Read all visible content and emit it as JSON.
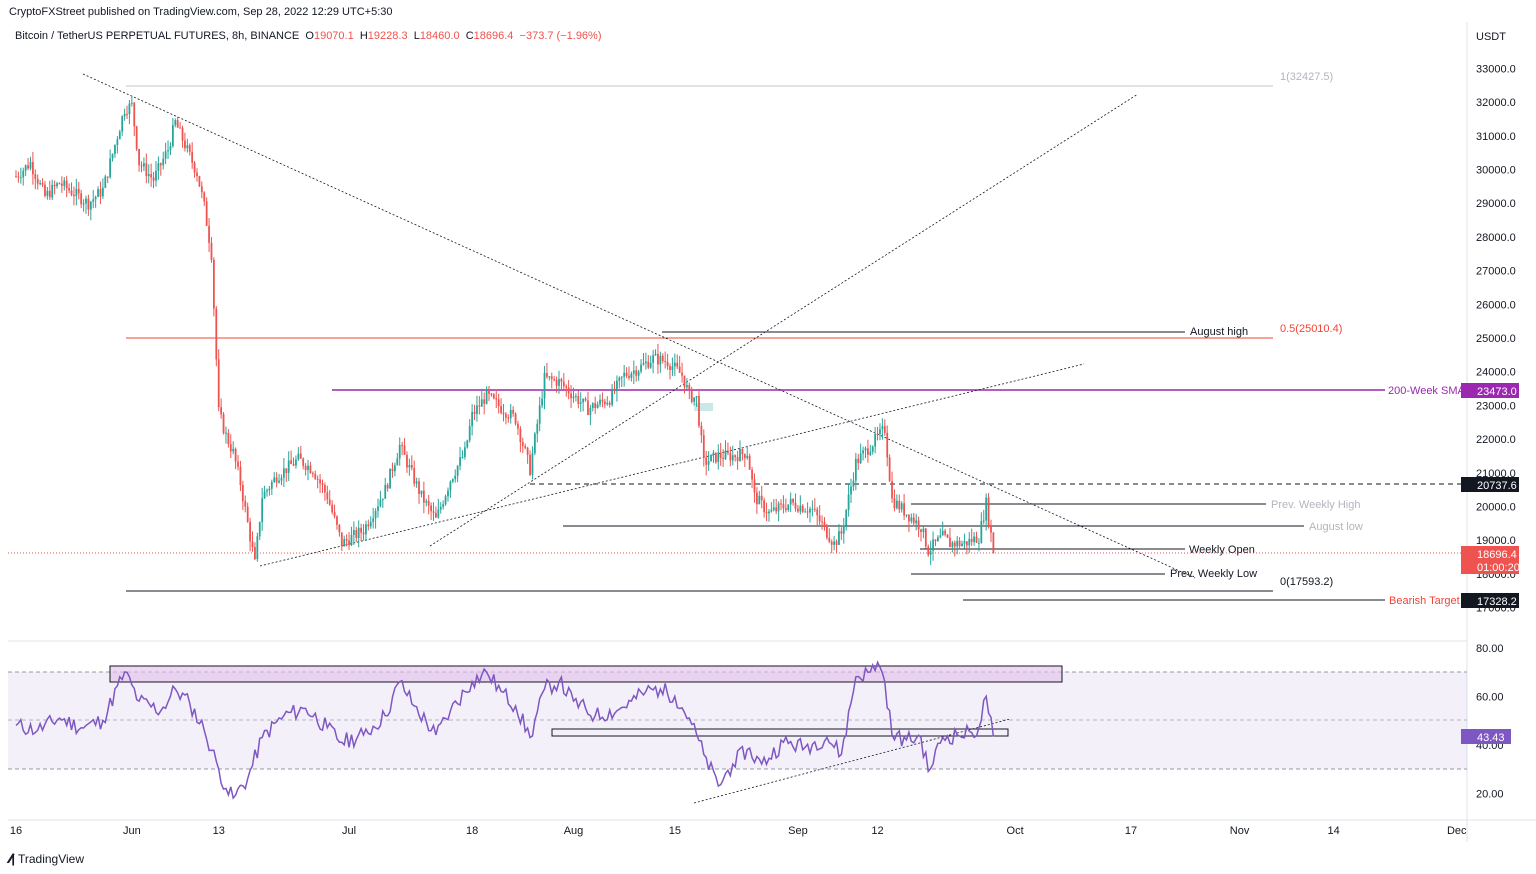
{
  "header": {
    "published": "CryptoFXStreet published on TradingView.com, Sep 28, 2022 12:29 UTC+5:30",
    "symbol": "Bitcoin / TetherUS PERPETUAL FUTURES, 8h, BINANCE",
    "open_label": "O",
    "open": "19070.1",
    "high_label": "H",
    "high": "19228.3",
    "low_label": "L",
    "low": "18460.0",
    "close_label": "C",
    "close": "18696.4",
    "change": "−373.7 (−1.96%)"
  },
  "footer": {
    "brand": "TradingView"
  },
  "colors": {
    "up": "#26a69a",
    "down": "#ef5350",
    "rsi": "#7e57c2",
    "sma": "#9c27b0",
    "fib": "#f44336"
  },
  "chart_data": [
    {
      "type": "candlestick",
      "currency": "USDT",
      "ylim": [
        16500,
        33700
      ],
      "y_ticks": [
        "17000.0",
        "18000.0",
        "19000.0",
        "20000.0",
        "21000.0",
        "22000.0",
        "23000.0",
        "24000.0",
        "25000.0",
        "26000.0",
        "27000.0",
        "28000.0",
        "29000.0",
        "30000.0",
        "31000.0",
        "32000.0",
        "33000.0"
      ],
      "x_ticks": [
        "16",
        "Jun",
        "13",
        "Jul",
        "18",
        "Aug",
        "15",
        "Sep",
        "12",
        "Oct",
        "17",
        "Nov",
        "14",
        "Dec"
      ],
      "price_path": [
        [
          "May 16",
          29800
        ],
        [
          "May 18",
          30200
        ],
        [
          "May 20",
          29200
        ],
        [
          "May 22",
          29600
        ],
        [
          "May 24",
          29300
        ],
        [
          "May 26",
          29000
        ],
        [
          "May 28",
          29400
        ],
        [
          "May 31",
          31800
        ],
        [
          "Jun 1",
          31900
        ],
        [
          "Jun 2",
          30200
        ],
        [
          "Jun 4",
          29700
        ],
        [
          "Jun 6",
          30600
        ],
        [
          "Jun 7",
          31400
        ],
        [
          "Jun 8",
          30900
        ],
        [
          "Jun 10",
          29900
        ],
        [
          "Jun 11",
          28900
        ],
        [
          "Jun 12",
          27500
        ],
        [
          "Jun 13",
          22800
        ],
        [
          "Jun 14",
          22100
        ],
        [
          "Jun 15",
          21600
        ],
        [
          "Jun 16",
          20700
        ],
        [
          "Jun 18",
          18300
        ],
        [
          "Jun 19",
          20300
        ],
        [
          "Jun 21",
          20900
        ],
        [
          "Jun 24",
          21400
        ],
        [
          "Jun 26",
          21100
        ],
        [
          "Jun 28",
          20300
        ],
        [
          "Jun 30",
          18900
        ],
        [
          "Jul 3",
          19300
        ],
        [
          "Jul 6",
          20500
        ],
        [
          "Jul 8",
          21800
        ],
        [
          "Jul 11",
          20300
        ],
        [
          "Jul 13",
          19600
        ],
        [
          "Jul 15",
          20800
        ],
        [
          "Jul 17",
          21600
        ],
        [
          "Jul 18",
          22700
        ],
        [
          "Jul 20",
          23300
        ],
        [
          "Jul 21",
          23100
        ],
        [
          "Jul 24",
          22600
        ],
        [
          "Jul 26",
          21100
        ],
        [
          "Jul 28",
          23800
        ],
        [
          "Jul 30",
          23700
        ],
        [
          "Aug 1",
          23300
        ],
        [
          "Aug 3",
          22900
        ],
        [
          "Aug 6",
          23200
        ],
        [
          "Aug 8",
          23900
        ],
        [
          "Aug 10",
          24100
        ],
        [
          "Aug 12",
          24400
        ],
        [
          "Aug 14",
          24300
        ],
        [
          "Aug 15",
          24100
        ],
        [
          "Aug 16",
          23900
        ],
        [
          "Aug 17",
          23300
        ],
        [
          "Aug 18",
          23200
        ],
        [
          "Aug 19",
          21300
        ],
        [
          "Aug 21",
          21500
        ],
        [
          "Aug 23",
          21500
        ],
        [
          "Aug 25",
          21600
        ],
        [
          "Aug 26",
          20300
        ],
        [
          "Aug 28",
          19800
        ],
        [
          "Aug 31",
          20100
        ],
        [
          "Sep 3",
          19900
        ],
        [
          "Sep 6",
          18900
        ],
        [
          "Sep 7",
          19200
        ],
        [
          "Sep 9",
          21300
        ],
        [
          "Sep 11",
          21800
        ],
        [
          "Sep 13",
          22300
        ],
        [
          "Sep 14",
          20200
        ],
        [
          "Sep 16",
          19800
        ],
        [
          "Sep 18",
          19400
        ],
        [
          "Sep 19",
          18700
        ],
        [
          "Sep 21",
          19100
        ],
        [
          "Sep 22",
          18900
        ],
        [
          "Sep 24",
          18900
        ],
        [
          "Sep 26",
          19100
        ],
        [
          "Sep 27",
          20100
        ],
        [
          "Sep 28",
          18696
        ]
      ]
    },
    {
      "type": "line",
      "ylim": [
        10,
        87
      ],
      "y_ticks": [
        "20.00",
        "40.00",
        "60.00",
        "80.00"
      ],
      "bands": [
        30,
        50,
        70
      ],
      "current": "43.43",
      "series": [
        {
          "values": [
            [
              "May 16",
              48
            ],
            [
              "May 19",
              46
            ],
            [
              "May 22",
              51
            ],
            [
              "May 25",
              47
            ],
            [
              "May 28",
              50
            ],
            [
              "May 31",
              70
            ],
            [
              "Jun 2",
              58
            ],
            [
              "Jun 5",
              54
            ],
            [
              "Jun 7",
              63
            ],
            [
              "Jun 9",
              57
            ],
            [
              "Jun 11",
              46
            ],
            [
              "Jun 13",
              30
            ],
            [
              "Jun 14",
              22
            ],
            [
              "Jun 15",
              18
            ],
            [
              "Jun 17",
              26
            ],
            [
              "Jun 19",
              43
            ],
            [
              "Jun 22",
              52
            ],
            [
              "Jun 25",
              55
            ],
            [
              "Jun 28",
              47
            ],
            [
              "Jun 30",
              41
            ],
            [
              "Jul 3",
              44
            ],
            [
              "Jul 6",
              52
            ],
            [
              "Jul 8",
              66
            ],
            [
              "Jul 10",
              56
            ],
            [
              "Jul 13",
              44
            ],
            [
              "Jul 15",
              54
            ],
            [
              "Jul 18",
              66
            ],
            [
              "Jul 20",
              70
            ],
            [
              "Jul 22",
              62
            ],
            [
              "Jul 24",
              56
            ],
            [
              "Jul 26",
              43
            ],
            [
              "Jul 28",
              63
            ],
            [
              "Jul 30",
              66
            ],
            [
              "Aug 1",
              58
            ],
            [
              "Aug 4",
              52
            ],
            [
              "Aug 7",
              54
            ],
            [
              "Aug 9",
              58
            ],
            [
              "Aug 11",
              62
            ],
            [
              "Aug 13",
              63
            ],
            [
              "Aug 15",
              60
            ],
            [
              "Aug 17",
              51
            ],
            [
              "Aug 19",
              36
            ],
            [
              "Aug 21",
              23
            ],
            [
              "Aug 23",
              32
            ],
            [
              "Aug 25",
              38
            ],
            [
              "Aug 27",
              32
            ],
            [
              "Aug 30",
              41
            ],
            [
              "Sep 2",
              39
            ],
            [
              "Sep 5",
              43
            ],
            [
              "Sep 7",
              36
            ],
            [
              "Sep 9",
              68
            ],
            [
              "Sep 11",
              70
            ],
            [
              "Sep 12",
              74
            ],
            [
              "Sep 13",
              66
            ],
            [
              "Sep 14",
              44
            ],
            [
              "Sep 16",
              42
            ],
            [
              "Sep 18",
              43
            ],
            [
              "Sep 19",
              29
            ],
            [
              "Sep 21",
              43
            ],
            [
              "Sep 23",
              44
            ],
            [
              "Sep 25",
              45
            ],
            [
              "Sep 26",
              47
            ],
            [
              "Sep 27",
              60
            ],
            [
              "Sep 28",
              43.43
            ]
          ]
        }
      ]
    }
  ],
  "annotations": {
    "fib_top": "1(32427.5)",
    "fib_mid": "0.5(25010.4)",
    "fib_bottom": "0(17593.2)",
    "august_high": "August high",
    "sma200": "200-Week SMA",
    "sma200_value": "23473.0",
    "level_20737": "20737.6",
    "prev_weekly_high": "Prev. Weekly High",
    "august_low": "August low",
    "weekly_open": "Weekly Open",
    "prev_weekly_low": "Prev. Weekly Low",
    "bearish_target": "Bearish Target",
    "bearish_value": "17328.2",
    "last_price": "18696.4",
    "countdown": "01:00:20"
  }
}
